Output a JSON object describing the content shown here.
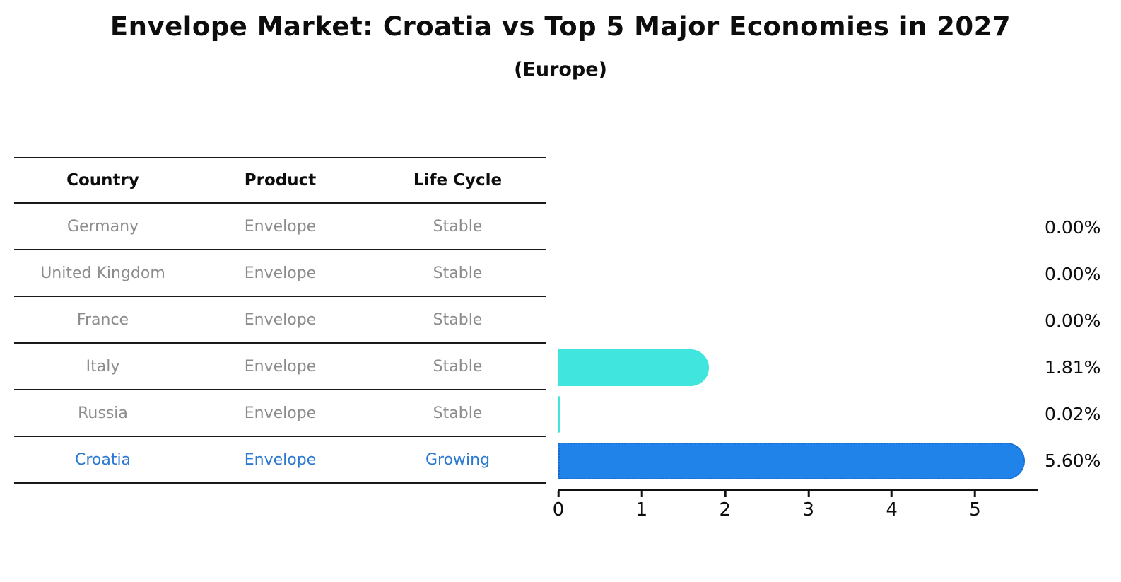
{
  "header": {
    "title": "Envelope Market: Croatia vs Top 5 Major Economies in 2027",
    "subtitle": "(Europe)"
  },
  "table": {
    "headers": [
      "Country",
      "Product",
      "Life Cycle"
    ],
    "rows": [
      {
        "country": "Germany",
        "product": "Envelope",
        "life_cycle": "Stable",
        "highlight": false
      },
      {
        "country": "United Kingdom",
        "product": "Envelope",
        "life_cycle": "Stable",
        "highlight": false
      },
      {
        "country": "France",
        "product": "Envelope",
        "life_cycle": "Stable",
        "highlight": false
      },
      {
        "country": "Italy",
        "product": "Envelope",
        "life_cycle": "Stable",
        "highlight": false
      },
      {
        "country": "Russia",
        "product": "Envelope",
        "life_cycle": "Stable",
        "highlight": false
      },
      {
        "country": "Croatia",
        "product": "Envelope",
        "life_cycle": "Growing",
        "highlight": true
      }
    ]
  },
  "chart_data": {
    "type": "bar",
    "orientation": "horizontal",
    "title": "Envelope Market: Croatia vs Top 5 Major Economies in 2027",
    "subtitle": "(Europe)",
    "categories": [
      "Germany",
      "United Kingdom",
      "France",
      "Italy",
      "Russia",
      "Croatia"
    ],
    "values": [
      0.0,
      0.0,
      0.0,
      1.81,
      0.02,
      5.6
    ],
    "value_labels": [
      "0.00%",
      "0.00%",
      "0.00%",
      "1.81%",
      "0.02%",
      "5.60%"
    ],
    "x_ticks": [
      0,
      1,
      2,
      3,
      4,
      5
    ],
    "xlim": [
      0,
      5.75
    ],
    "grid": false,
    "legend": "none",
    "highlight_index": 5,
    "colors": {
      "bar_default": "#40e5dd",
      "bar_highlight": "#1f83ea",
      "bar_highlight_border": "#1a66cc"
    }
  },
  "colors": {
    "highlight_text": "#2b78d2",
    "table_text": "#8c8c8c",
    "heading_text": "#0d0d0d",
    "axis": "#111111"
  }
}
